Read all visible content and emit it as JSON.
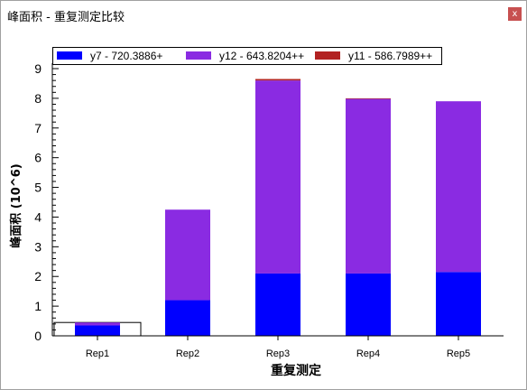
{
  "window": {
    "title": "峰面积 - 重复测定比较",
    "close_glyph": "x"
  },
  "chart_data": {
    "type": "bar",
    "stacked": true,
    "categories": [
      "Rep1",
      "Rep2",
      "Rep3",
      "Rep4",
      "Rep5"
    ],
    "series": [
      {
        "name": "y7 - 720.3886+",
        "color": "#0000ff",
        "values": [
          0.35,
          1.2,
          2.1,
          2.1,
          2.15
        ]
      },
      {
        "name": "y12 - 643.8204++",
        "color": "#8a2be2",
        "values": [
          0.1,
          3.05,
          6.5,
          5.88,
          5.75
        ]
      },
      {
        "name": "y11 - 586.7989++",
        "color": "#b22222",
        "values": [
          0.0,
          0.0,
          0.05,
          0.02,
          0.0
        ]
      }
    ],
    "xlabel": "重复测定",
    "ylabel": "峰面积 (10^6)",
    "ylim": [
      0,
      9
    ],
    "yticks": [
      0,
      1,
      2,
      3,
      4,
      5,
      6,
      7,
      8,
      9
    ],
    "legend_position": "top",
    "grid": false,
    "selected_category": "Rep1"
  }
}
